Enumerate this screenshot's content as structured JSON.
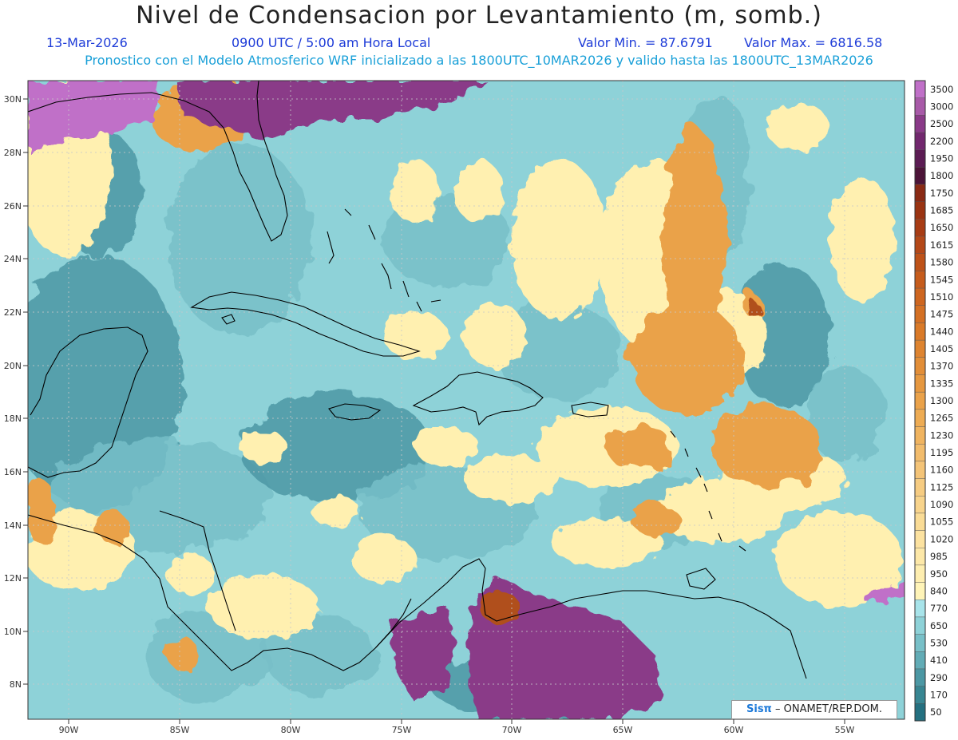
{
  "header": {
    "title": "Nivel de Condensacion por Levantamiento (m, somb.)",
    "date": "13-Mar-2026",
    "time": "0900 UTC / 5:00 am Hora Local",
    "min_value": "Valor Min. = 87.6791",
    "max_value": "Valor Max. = 6816.58",
    "model_info": "Pronostico con el Modelo Atmosferico WRF inicializado a las 1800UTC_10MAR2026 y valido hasta las  1800UTC_13MAR2026"
  },
  "axes": {
    "lat_labels": [
      "30N",
      "28N",
      "26N",
      "24N",
      "22N",
      "20N",
      "18N",
      "16N",
      "14N",
      "12N",
      "10N",
      "8N"
    ],
    "lon_labels": [
      "90W",
      "85W",
      "80W",
      "75W",
      "70W",
      "65W",
      "60W",
      "55W"
    ]
  },
  "legend": {
    "levels": [
      {
        "label": "3500",
        "color": "#c070c8"
      },
      {
        "label": "3000",
        "color": "#a85aa8"
      },
      {
        "label": "2500",
        "color": "#8a3a88"
      },
      {
        "label": "2200",
        "color": "#72286e"
      },
      {
        "label": "1950",
        "color": "#5c1c54"
      },
      {
        "label": "1800",
        "color": "#4c1438"
      },
      {
        "label": "1750",
        "color": "#8a2a14"
      },
      {
        "label": "1685",
        "color": "#9a3412"
      },
      {
        "label": "1650",
        "color": "#a83c14"
      },
      {
        "label": "1615",
        "color": "#b44818"
      },
      {
        "label": "1580",
        "color": "#be5218"
      },
      {
        "label": "1545",
        "color": "#c65c1c"
      },
      {
        "label": "1510",
        "color": "#ce6620"
      },
      {
        "label": "1475",
        "color": "#d47024"
      },
      {
        "label": "1440",
        "color": "#da7a28"
      },
      {
        "label": "1405",
        "color": "#de8430"
      },
      {
        "label": "1370",
        "color": "#e28e38"
      },
      {
        "label": "1335",
        "color": "#e69840"
      },
      {
        "label": "1300",
        "color": "#eaa24a"
      },
      {
        "label": "1265",
        "color": "#eeac54"
      },
      {
        "label": "1230",
        "color": "#f0b460"
      },
      {
        "label": "1195",
        "color": "#f2bc6c"
      },
      {
        "label": "1160",
        "color": "#f4c478"
      },
      {
        "label": "1125",
        "color": "#f6cc82"
      },
      {
        "label": "1090",
        "color": "#f8d48c"
      },
      {
        "label": "1055",
        "color": "#fadc96"
      },
      {
        "label": "1020",
        "color": "#fce2a0"
      },
      {
        "label": "985",
        "color": "#fde8a8"
      },
      {
        "label": "950",
        "color": "#feeeb0"
      },
      {
        "label": "840",
        "color": "#fff4b8"
      },
      {
        "label": "770",
        "color": "#a8e4ea"
      },
      {
        "label": "650",
        "color": "#8ed2d8"
      },
      {
        "label": "530",
        "color": "#78c0c8"
      },
      {
        "label": "410",
        "color": "#62acb6"
      },
      {
        "label": "290",
        "color": "#4c98a4"
      },
      {
        "label": "170",
        "color": "#388692"
      },
      {
        "label": "50",
        "color": "#247080"
      }
    ]
  },
  "colors": {
    "sea_base": "#8ed2d8",
    "teal_mid": "#78c0c8",
    "teal_dark": "#4c98a4",
    "yellow": "#fff0b0",
    "orange": "#eaa24a",
    "brown": "#b0501a",
    "purple": "#8a3a88",
    "violet": "#c070c8",
    "coast": "#000000",
    "grid": "#c8c8c8"
  },
  "credit": {
    "brand": "Sisπ",
    "org": " – ONAMET/REP.DOM."
  }
}
